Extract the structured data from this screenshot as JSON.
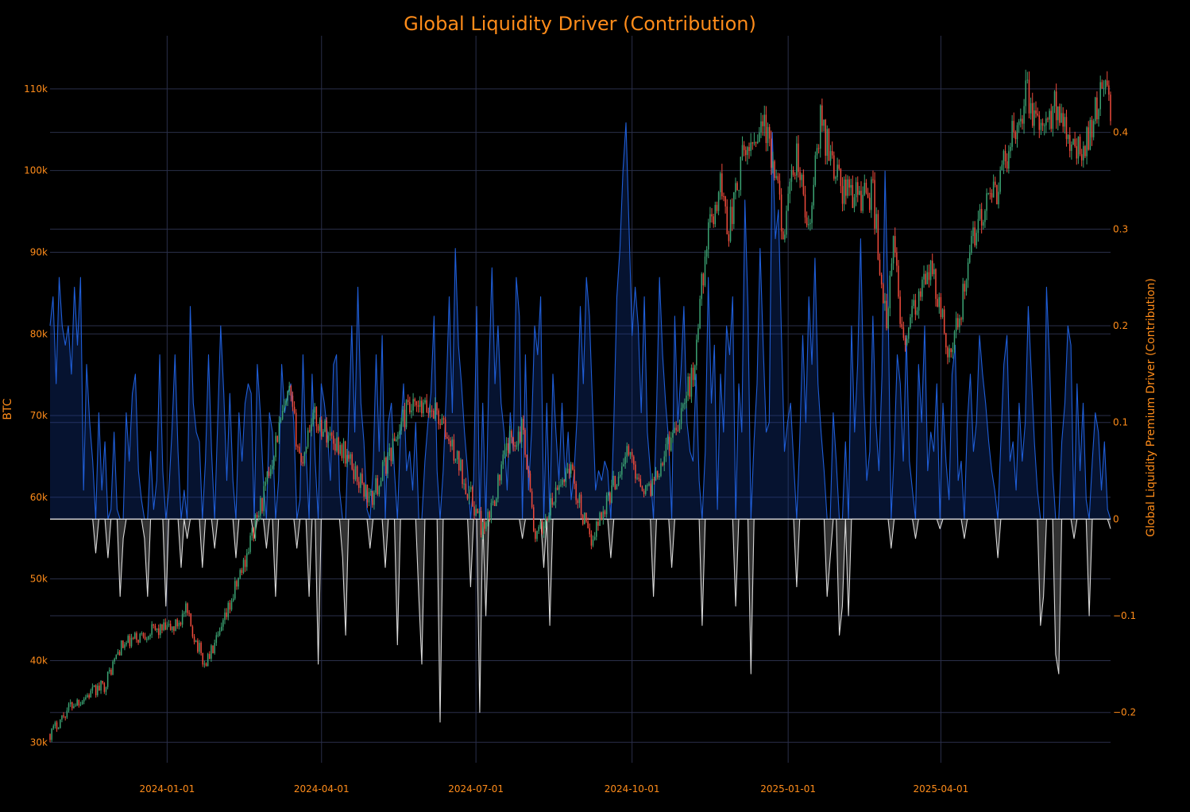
{
  "chart_data": {
    "type": "line",
    "title": "Global Liquidity Driver (Contribution)",
    "x_start": "2023-10-24",
    "x_end": "2025-07-10",
    "x_ticks": [
      {
        "date": "2024-01-01",
        "label": "2024-01-01"
      },
      {
        "date": "2024-04-01",
        "label": "2024-04-01"
      },
      {
        "date": "2024-07-01",
        "label": "2024-07-01"
      },
      {
        "date": "2024-10-01",
        "label": "2024-10-01"
      },
      {
        "date": "2025-01-01",
        "label": "2025-01-01"
      },
      {
        "date": "2025-04-01",
        "label": "2025-04-01"
      }
    ],
    "y_left": {
      "label": "BTC",
      "range": [
        27500,
        116500
      ],
      "ticks": [
        {
          "value": 30000,
          "label": "30k"
        },
        {
          "value": 40000,
          "label": "40k"
        },
        {
          "value": 50000,
          "label": "50k"
        },
        {
          "value": 60000,
          "label": "60k"
        },
        {
          "value": 70000,
          "label": "70k"
        },
        {
          "value": 80000,
          "label": "80k"
        },
        {
          "value": 90000,
          "label": "90k"
        },
        {
          "value": 100000,
          "label": "100k"
        },
        {
          "value": 110000,
          "label": "110k"
        }
      ]
    },
    "y_right": {
      "label": "Global Liquidity Premium Driver (Contribution)",
      "range": [
        -0.252,
        0.5
      ],
      "ticks": [
        {
          "value": -0.2,
          "label": "−0.2"
        },
        {
          "value": -0.1,
          "label": "−0.1"
        },
        {
          "value": 0,
          "label": "0"
        },
        {
          "value": 0.1,
          "label": "0.1"
        },
        {
          "value": 0.2,
          "label": "0.2"
        },
        {
          "value": 0.3,
          "label": "0.3"
        },
        {
          "value": 0.4,
          "label": "0.4"
        }
      ]
    },
    "series": [
      {
        "name": "BTC",
        "kind": "candlestick",
        "axis": "left",
        "up_color": "#3ba272",
        "down_color": "#ef4b3c",
        "anchors": [
          [
            "2023-10-24",
            31000
          ],
          [
            "2023-11-05",
            34500
          ],
          [
            "2023-11-25",
            37000
          ],
          [
            "2023-12-04",
            41500
          ],
          [
            "2023-12-20",
            43500
          ],
          [
            "2024-01-05",
            44000
          ],
          [
            "2024-01-12",
            46000
          ],
          [
            "2024-01-23",
            39500
          ],
          [
            "2024-02-01",
            43000
          ],
          [
            "2024-02-15",
            51800
          ],
          [
            "2024-02-28",
            61000
          ],
          [
            "2024-03-05",
            67000
          ],
          [
            "2024-03-13",
            72500
          ],
          [
            "2024-03-20",
            64000
          ],
          [
            "2024-03-26",
            70000
          ],
          [
            "2024-04-13",
            66000
          ],
          [
            "2024-04-30",
            59500
          ],
          [
            "2024-05-21",
            70500
          ],
          [
            "2024-06-07",
            70800
          ],
          [
            "2024-06-20",
            64500
          ],
          [
            "2024-07-06",
            55500
          ],
          [
            "2024-07-20",
            66500
          ],
          [
            "2024-07-29",
            68500
          ],
          [
            "2024-08-05",
            54500
          ],
          [
            "2024-08-25",
            64000
          ],
          [
            "2024-09-06",
            54500
          ],
          [
            "2024-09-28",
            65500
          ],
          [
            "2024-10-10",
            60500
          ],
          [
            "2024-10-28",
            69500
          ],
          [
            "2024-11-06",
            75000
          ],
          [
            "2024-11-13",
            90000
          ],
          [
            "2024-11-22",
            98500
          ],
          [
            "2024-11-27",
            93000
          ],
          [
            "2024-12-05",
            101000
          ],
          [
            "2024-12-17",
            106500
          ],
          [
            "2024-12-30",
            92500
          ],
          [
            "2025-01-06",
            102000
          ],
          [
            "2025-01-13",
            92000
          ],
          [
            "2025-01-20",
            106000
          ],
          [
            "2025-02-02",
            97500
          ],
          [
            "2025-02-20",
            97000
          ],
          [
            "2025-02-28",
            80500
          ],
          [
            "2025-03-04",
            91000
          ],
          [
            "2025-03-10",
            79000
          ],
          [
            "2025-03-26",
            88000
          ],
          [
            "2025-04-07",
            77000
          ],
          [
            "2025-04-22",
            93500
          ],
          [
            "2025-05-02",
            96500
          ],
          [
            "2025-05-21",
            109500
          ],
          [
            "2025-05-31",
            104000
          ],
          [
            "2025-06-09",
            108500
          ],
          [
            "2025-06-22",
            101500
          ],
          [
            "2025-07-03",
            109000
          ],
          [
            "2025-07-10",
            108500
          ]
        ]
      },
      {
        "name": "Global Liquidity Premium Driver (Contribution)",
        "kind": "area",
        "axis": "right",
        "positive_color": "#1f5ed8",
        "negative_color": "#d9d9d9",
        "values": [
          0.2,
          0.23,
          0.14,
          0.25,
          0.2,
          0.18,
          0.2,
          0.15,
          0.24,
          0.18,
          0.25,
          0.03,
          0.16,
          0.1,
          0.06,
          -0.035,
          0.11,
          0.03,
          0.08,
          -0.04,
          0.01,
          0.09,
          0.01,
          -0.08,
          -0.02,
          0.11,
          0.06,
          0.13,
          0.15,
          0.05,
          0.02,
          -0.02,
          -0.08,
          0.07,
          0.01,
          0.04,
          0.17,
          0.05,
          -0.09,
          0.03,
          0.09,
          0.17,
          0.07,
          -0.05,
          0.03,
          -0.02,
          0.22,
          0.12,
          0.09,
          0.08,
          -0.05,
          0.06,
          0.17,
          0.07,
          -0.03,
          0.1,
          0.2,
          0.13,
          0.04,
          0.13,
          0.04,
          -0.04,
          0.11,
          0.06,
          0.12,
          0.14,
          0.13,
          -0.02,
          0.16,
          0.11,
          0.04,
          -0.03,
          0.11,
          0.09,
          -0.08,
          0.04,
          0.16,
          0.11,
          0.13,
          0.14,
          0.1,
          -0.03,
          0.02,
          0.17,
          0.07,
          -0.08,
          0.15,
          0.06,
          -0.15,
          0.14,
          0.12,
          0.09,
          0.04,
          0.16,
          0.17,
          0.03,
          -0.04,
          -0.12,
          0.1,
          0.2,
          0.09,
          0.24,
          0.12,
          0.08,
          0.01,
          -0.03,
          0.05,
          0.17,
          0.07,
          0.19,
          -0.05,
          0.1,
          0.12,
          0.05,
          -0.13,
          0.09,
          0.14,
          0.05,
          0.07,
          0.03,
          0.1,
          -0.08,
          -0.15,
          0.06,
          0.1,
          0.13,
          0.21,
          0.05,
          -0.21,
          0.05,
          0.13,
          0.23,
          0.11,
          0.28,
          0.18,
          0.14,
          0.09,
          0.05,
          -0.07,
          0.04,
          0.22,
          -0.2,
          0.12,
          -0.1,
          0.15,
          0.26,
          0.14,
          0.2,
          0.12,
          0.09,
          0.03,
          0.11,
          0.07,
          0.25,
          0.21,
          -0.02,
          0.17,
          0.03,
          0.09,
          0.2,
          0.17,
          0.23,
          -0.05,
          0.12,
          -0.11,
          0.15,
          0.09,
          0.04,
          0.12,
          0.04,
          0.09,
          0.02,
          0.05,
          0.11,
          0.22,
          0.14,
          0.25,
          0.21,
          0.12,
          0.03,
          0.05,
          0.04,
          0.06,
          0.05,
          -0.04,
          0.1,
          0.23,
          0.28,
          0.36,
          0.41,
          0.3,
          0.19,
          0.24,
          0.2,
          0.11,
          0.23,
          0.09,
          0.05,
          -0.08,
          0.11,
          0.25,
          0.17,
          0.12,
          0.08,
          -0.05,
          0.21,
          0.1,
          0.15,
          0.22,
          0.1,
          0.07,
          0.06,
          0.15,
          0.04,
          -0.11,
          0.07,
          0.25,
          0.12,
          0.18,
          0.01,
          0.15,
          0.09,
          0.2,
          0.17,
          0.23,
          -0.09,
          0.14,
          0.09,
          0.33,
          0.22,
          -0.16,
          0.08,
          0.14,
          0.28,
          0.18,
          0.09,
          0.1,
          0.4,
          0.29,
          0.32,
          0.19,
          0.07,
          0.1,
          0.12,
          0.06,
          -0.07,
          0.08,
          0.19,
          0.1,
          0.23,
          0.16,
          0.27,
          0.14,
          0.09,
          0.05,
          -0.08,
          -0.04,
          0.11,
          0.06,
          -0.12,
          -0.09,
          0.08,
          -0.1,
          0.2,
          0.09,
          0.16,
          0.29,
          0.13,
          0.04,
          0.07,
          0.21,
          0.1,
          0.05,
          0.15,
          0.36,
          0.22,
          -0.03,
          0.07,
          0.17,
          0.14,
          0.06,
          0.19,
          0.06,
          0.03,
          -0.02,
          0.16,
          0.1,
          0.2,
          0.05,
          0.09,
          0.07,
          0.14,
          -0.01,
          0.12,
          0.06,
          0.02,
          0.15,
          0.18,
          0.04,
          0.06,
          -0.02,
          0.1,
          0.15,
          0.07,
          0.1,
          0.19,
          0.15,
          0.12,
          0.08,
          0.05,
          0.03,
          -0.04,
          0.08,
          0.16,
          0.19,
          0.06,
          0.08,
          0.03,
          0.12,
          0.06,
          0.1,
          0.22,
          0.15,
          0.08,
          0.03,
          -0.11,
          -0.08,
          0.24,
          0.16,
          0.05,
          -0.14,
          -0.16,
          0.08,
          0.12,
          0.2,
          0.18,
          -0.02,
          0.14,
          0.05,
          0.12,
          0.02,
          -0.1,
          0.06,
          0.11,
          0.09,
          0.03,
          0.08,
          0.01,
          -0.01
        ]
      }
    ]
  }
}
